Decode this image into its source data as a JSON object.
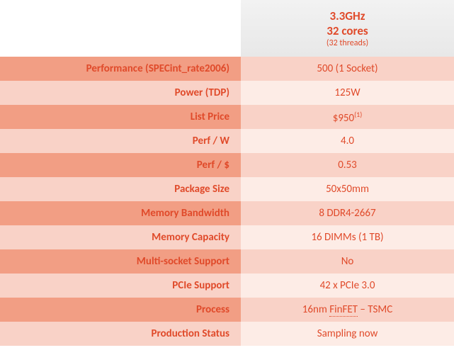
{
  "colors": {
    "text": "#e04a2a",
    "dark_label_bg": "#f29e84",
    "dark_value_bg": "#f9d2c7",
    "light_label_bg": "#f9d2c7",
    "light_value_bg": "#fdece6",
    "header_bg_top": "#f2f2f2",
    "header_bg_bottom": "#e8e8e8"
  },
  "header": {
    "line1": "3.3GHz",
    "line2": "32 cores",
    "line3": "(32 threads)"
  },
  "rows": [
    {
      "label": "Performance (SPECint_rate2006)",
      "value": "500 (1 Socket)"
    },
    {
      "label": "Power (TDP)",
      "value": "125W"
    },
    {
      "label": "List Price",
      "value": "$950",
      "value_sup": "(1)"
    },
    {
      "label": "Perf / W",
      "value": "4.0"
    },
    {
      "label": "Perf / $",
      "value": "0.53"
    },
    {
      "label": "Package Size",
      "value": "50x50mm"
    },
    {
      "label": "Memory Bandwidth",
      "value": "8 DDR4-2667"
    },
    {
      "label": "Memory Capacity",
      "value": "16 DIMMs (1 TB)"
    },
    {
      "label": "Multi-socket Support",
      "value": "No"
    },
    {
      "label": "PCIe Support",
      "value": "42 x PCIe 3.0"
    },
    {
      "label": "Process",
      "value_parts": [
        "16nm ",
        {
          "ud": "FinFET"
        },
        " – TSMC"
      ]
    },
    {
      "label": "Production Status",
      "value": "Sampling now"
    }
  ]
}
